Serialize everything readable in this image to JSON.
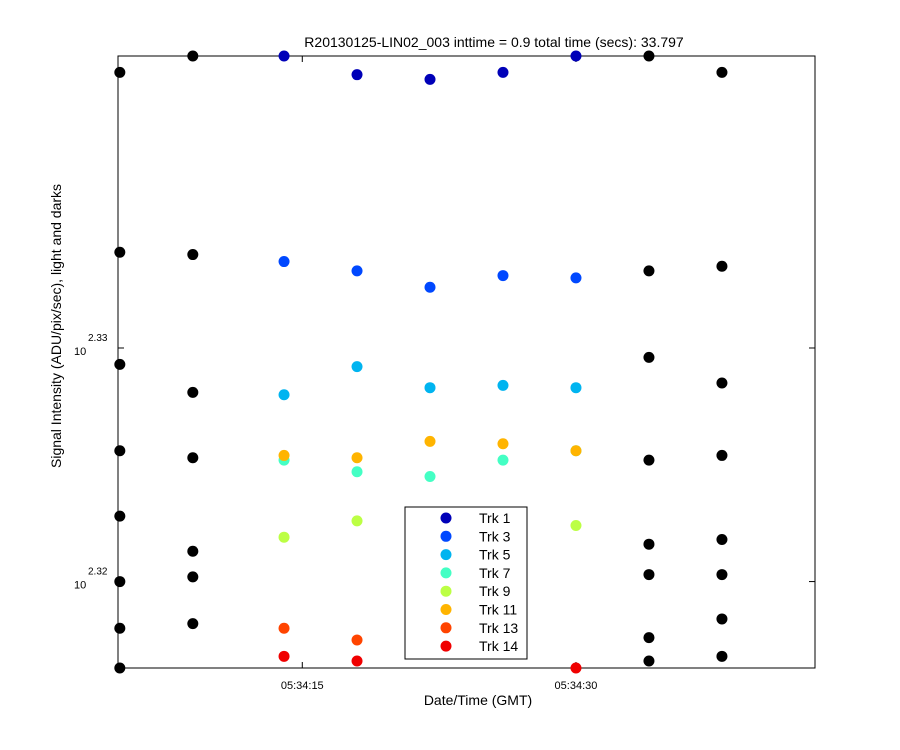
{
  "chart_data": {
    "type": "scatter",
    "title": "R20130125-LIN02_003 inttime = 0.9 total time (secs): 33.797",
    "xlabel": "Date/Time (GMT)",
    "ylabel": "Signal Intensity (ADU/pix/sec), light and darks",
    "x_ticks": [
      "05:34:15",
      "05:34:30"
    ],
    "y_ticks": [
      {
        "base": "10",
        "exponent": "2.32",
        "value": 2.32
      },
      {
        "base": "10",
        "exponent": "2.33",
        "value": 2.33
      }
    ],
    "y_scale": "log10",
    "x_range_seconds": [
      4.9,
      43.1
    ],
    "ylim_exponent": [
      2.3163,
      2.3425
    ],
    "grid": false,
    "legend_position": "bottom-center",
    "colors": {
      "dark": "#000000",
      "Trk 1": "#0000b8",
      "Trk 3": "#0048ff",
      "Trk 5": "#00b4f0",
      "Trk 7": "#44ffc4",
      "Trk 9": "#bcff44",
      "Trk 11": "#ffb400",
      "Trk 13": "#ff4400",
      "Trk 14": "#f00000"
    },
    "series": [
      {
        "name": "Trk 1",
        "points": [
          [
            14,
            2.3425
          ],
          [
            18,
            2.3417
          ],
          [
            22,
            2.3415
          ],
          [
            26,
            2.3418
          ],
          [
            30,
            2.3425
          ]
        ]
      },
      {
        "name": "Trk 3",
        "points": [
          [
            14,
            2.3337
          ],
          [
            18,
            2.3333
          ],
          [
            22,
            2.3326
          ],
          [
            26,
            2.3331
          ],
          [
            30,
            2.333
          ]
        ]
      },
      {
        "name": "Trk 5",
        "points": [
          [
            14,
            2.328
          ],
          [
            18,
            2.3292
          ],
          [
            22,
            2.3283
          ],
          [
            26,
            2.3284
          ],
          [
            30,
            2.3283
          ]
        ]
      },
      {
        "name": "Trk 7",
        "points": [
          [
            14,
            2.3252
          ],
          [
            18,
            2.3247
          ],
          [
            22,
            2.3245
          ],
          [
            26,
            2.3252
          ],
          [
            30,
            2.3256
          ]
        ]
      },
      {
        "name": "Trk 9",
        "points": [
          [
            14,
            2.3219
          ],
          [
            18,
            2.3226
          ],
          [
            22,
            2.3221
          ],
          [
            26,
            2.3218
          ],
          [
            30,
            2.3224
          ]
        ]
      },
      {
        "name": "Trk 11",
        "points": [
          [
            14,
            2.3254
          ],
          [
            18,
            2.3253
          ],
          [
            22,
            2.326
          ],
          [
            26,
            2.3259
          ],
          [
            30,
            2.3256
          ]
        ]
      },
      {
        "name": "Trk 13",
        "points": [
          [
            14,
            2.318
          ],
          [
            18,
            2.3175
          ]
        ]
      },
      {
        "name": "Trk 14",
        "points": [
          [
            14,
            2.3168
          ],
          [
            18,
            2.3166
          ],
          [
            30,
            2.3163
          ]
        ]
      },
      {
        "name": "",
        "role": "darks",
        "points": [
          [
            5,
            2.3418
          ],
          [
            5,
            2.3341
          ],
          [
            5,
            2.3293
          ],
          [
            5,
            2.3256
          ],
          [
            5,
            2.3228
          ],
          [
            5,
            2.32
          ],
          [
            5,
            2.318
          ],
          [
            5,
            2.3163
          ],
          [
            9,
            2.3425
          ],
          [
            9,
            2.334
          ],
          [
            9,
            2.3281
          ],
          [
            9,
            2.3253
          ],
          [
            9,
            2.3213
          ],
          [
            9,
            2.3202
          ],
          [
            9,
            2.3182
          ],
          [
            34,
            2.3425
          ],
          [
            34,
            2.3333
          ],
          [
            34,
            2.3296
          ],
          [
            34,
            2.3252
          ],
          [
            34,
            2.3216
          ],
          [
            34,
            2.3203
          ],
          [
            34,
            2.3176
          ],
          [
            34,
            2.3166
          ],
          [
            38,
            2.3418
          ],
          [
            38,
            2.3335
          ],
          [
            38,
            2.3285
          ],
          [
            38,
            2.3254
          ],
          [
            38,
            2.3218
          ],
          [
            38,
            2.3203
          ],
          [
            38,
            2.3184
          ],
          [
            38,
            2.3168
          ]
        ]
      }
    ]
  }
}
